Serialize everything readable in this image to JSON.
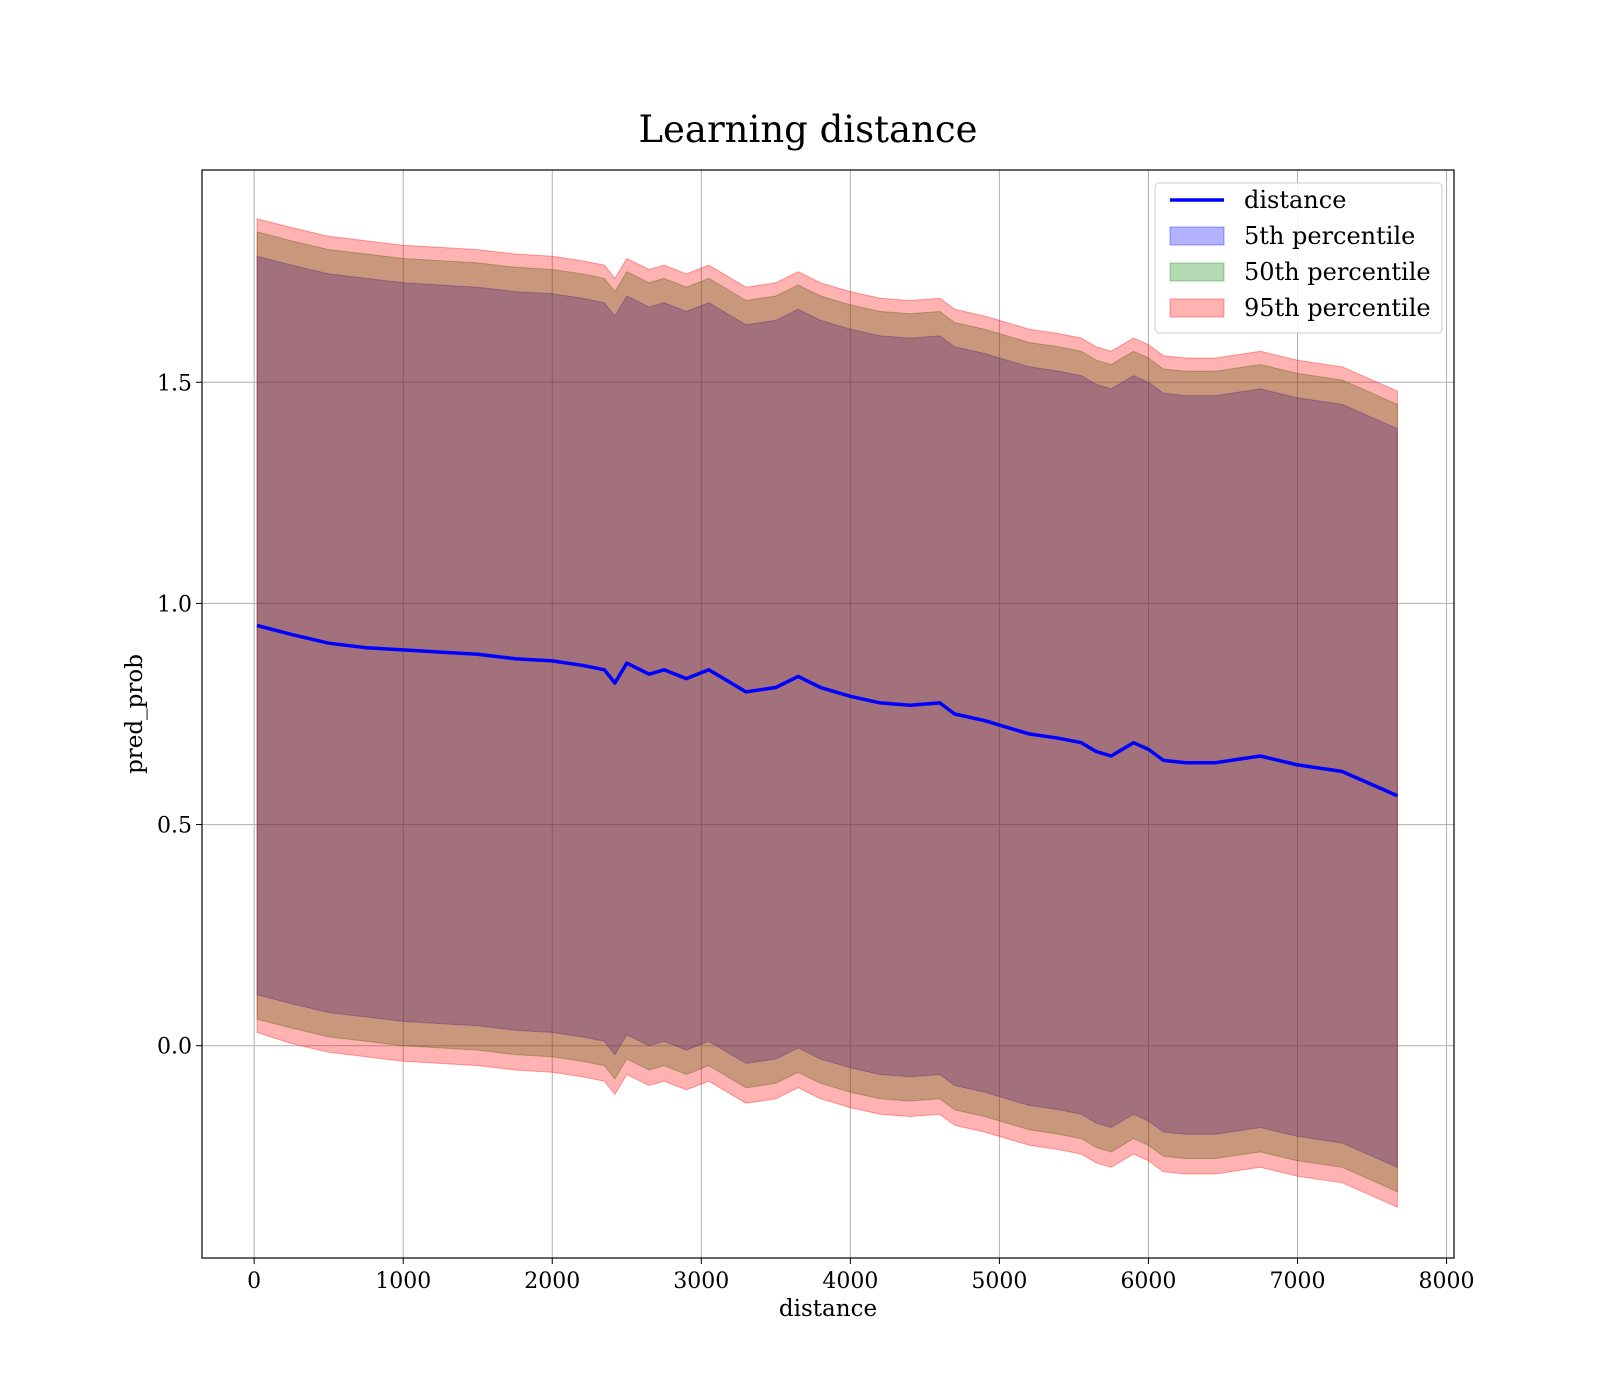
{
  "chart_data": {
    "type": "line",
    "title": "Learning distance",
    "xlabel": "distance",
    "ylabel": "pred_prob",
    "xlim": [
      -350,
      8050
    ],
    "ylim": [
      -0.48,
      1.98
    ],
    "xticks": [
      0,
      1000,
      2000,
      3000,
      4000,
      5000,
      6000,
      7000,
      8000
    ],
    "xtick_labels": [
      "0",
      "1000",
      "2000",
      "3000",
      "4000",
      "5000",
      "6000",
      "7000",
      "8000"
    ],
    "yticks": [
      0.0,
      0.5,
      1.0,
      1.5
    ],
    "ytick_labels": [
      "0.0",
      "0.5",
      "1.0",
      "1.5"
    ],
    "grid": true,
    "legend_position": "top-right",
    "x": [
      20,
      250,
      500,
      750,
      1000,
      1250,
      1500,
      1750,
      2000,
      2200,
      2350,
      2420,
      2500,
      2650,
      2750,
      2900,
      3050,
      3200,
      3300,
      3500,
      3650,
      3800,
      3900,
      4000,
      4200,
      4400,
      4600,
      4700,
      4900,
      5000,
      5200,
      5400,
      5550,
      5650,
      5750,
      5900,
      6000,
      6100,
      6250,
      6450,
      6750,
      7000,
      7300,
      7670
    ],
    "series": [
      {
        "name": "distance",
        "kind": "line",
        "color": "#0000ff",
        "values": [
          0.95,
          0.93,
          0.91,
          0.9,
          0.895,
          0.89,
          0.885,
          0.875,
          0.87,
          0.86,
          0.85,
          0.82,
          0.865,
          0.84,
          0.85,
          0.83,
          0.85,
          0.82,
          0.8,
          0.81,
          0.835,
          0.81,
          0.8,
          0.79,
          0.775,
          0.77,
          0.775,
          0.75,
          0.735,
          0.725,
          0.705,
          0.695,
          0.685,
          0.665,
          0.655,
          0.685,
          0.67,
          0.645,
          0.64,
          0.64,
          0.655,
          0.635,
          0.62,
          0.565
        ]
      },
      {
        "name": "5th percentile",
        "kind": "band",
        "color": "#0000ff",
        "lower": [
          0.115,
          0.095,
          0.075,
          0.065,
          0.055,
          0.05,
          0.045,
          0.035,
          0.03,
          0.02,
          0.01,
          -0.02,
          0.025,
          0.0,
          0.01,
          -0.01,
          0.01,
          -0.02,
          -0.04,
          -0.03,
          -0.005,
          -0.03,
          -0.04,
          -0.05,
          -0.065,
          -0.07,
          -0.065,
          -0.09,
          -0.105,
          -0.115,
          -0.135,
          -0.145,
          -0.155,
          -0.175,
          -0.185,
          -0.155,
          -0.17,
          -0.195,
          -0.2,
          -0.2,
          -0.185,
          -0.205,
          -0.22,
          -0.275
        ],
        "upper": [
          1.785,
          1.765,
          1.745,
          1.735,
          1.725,
          1.72,
          1.715,
          1.705,
          1.7,
          1.69,
          1.68,
          1.65,
          1.695,
          1.67,
          1.68,
          1.66,
          1.68,
          1.65,
          1.63,
          1.64,
          1.665,
          1.64,
          1.63,
          1.62,
          1.605,
          1.6,
          1.605,
          1.58,
          1.565,
          1.555,
          1.535,
          1.525,
          1.515,
          1.495,
          1.485,
          1.515,
          1.5,
          1.475,
          1.47,
          1.47,
          1.485,
          1.465,
          1.45,
          1.395
        ]
      },
      {
        "name": "50th percentile",
        "kind": "band",
        "color": "#008000",
        "lower": [
          0.06,
          0.04,
          0.02,
          0.01,
          0.0,
          -0.005,
          -0.01,
          -0.02,
          -0.025,
          -0.035,
          -0.045,
          -0.075,
          -0.03,
          -0.055,
          -0.045,
          -0.065,
          -0.045,
          -0.075,
          -0.095,
          -0.085,
          -0.06,
          -0.085,
          -0.095,
          -0.105,
          -0.12,
          -0.125,
          -0.12,
          -0.145,
          -0.16,
          -0.17,
          -0.19,
          -0.2,
          -0.21,
          -0.23,
          -0.24,
          -0.21,
          -0.225,
          -0.25,
          -0.255,
          -0.255,
          -0.24,
          -0.26,
          -0.275,
          -0.33
        ],
        "upper": [
          1.84,
          1.82,
          1.8,
          1.79,
          1.78,
          1.775,
          1.77,
          1.76,
          1.755,
          1.745,
          1.735,
          1.705,
          1.75,
          1.725,
          1.735,
          1.715,
          1.735,
          1.705,
          1.685,
          1.695,
          1.72,
          1.695,
          1.685,
          1.675,
          1.66,
          1.655,
          1.66,
          1.635,
          1.62,
          1.61,
          1.59,
          1.58,
          1.57,
          1.55,
          1.54,
          1.57,
          1.555,
          1.53,
          1.525,
          1.525,
          1.54,
          1.52,
          1.505,
          1.45
        ]
      },
      {
        "name": "95th percentile",
        "kind": "band",
        "color": "#ff0000",
        "lower": [
          0.03,
          0.005,
          -0.015,
          -0.025,
          -0.035,
          -0.04,
          -0.045,
          -0.055,
          -0.06,
          -0.07,
          -0.08,
          -0.11,
          -0.065,
          -0.09,
          -0.08,
          -0.1,
          -0.08,
          -0.11,
          -0.13,
          -0.12,
          -0.095,
          -0.12,
          -0.13,
          -0.14,
          -0.155,
          -0.16,
          -0.155,
          -0.18,
          -0.195,
          -0.205,
          -0.225,
          -0.235,
          -0.245,
          -0.265,
          -0.275,
          -0.245,
          -0.26,
          -0.285,
          -0.29,
          -0.29,
          -0.275,
          -0.295,
          -0.31,
          -0.365
        ],
        "upper": [
          1.87,
          1.85,
          1.83,
          1.82,
          1.81,
          1.805,
          1.8,
          1.79,
          1.785,
          1.775,
          1.765,
          1.735,
          1.78,
          1.755,
          1.765,
          1.745,
          1.765,
          1.735,
          1.715,
          1.725,
          1.75,
          1.725,
          1.715,
          1.705,
          1.69,
          1.685,
          1.69,
          1.665,
          1.65,
          1.64,
          1.62,
          1.61,
          1.6,
          1.58,
          1.57,
          1.6,
          1.585,
          1.56,
          1.555,
          1.555,
          1.57,
          1.55,
          1.535,
          1.48
        ]
      }
    ]
  }
}
